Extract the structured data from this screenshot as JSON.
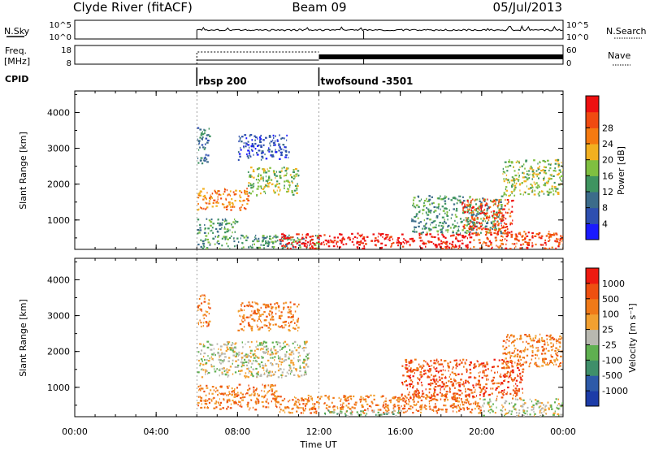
{
  "header": {
    "title_left": "Clyde River (fitACF)",
    "title_center": "Beam 09",
    "title_right": "05/Jul/2013"
  },
  "noise_panel": {
    "left_label": "N.Sky",
    "right_label": "N.Search",
    "left_ticks": [
      "10^5",
      "10^0"
    ],
    "right_ticks": [
      "10^5",
      "10^0"
    ]
  },
  "freq_panel": {
    "left_label_1": "Freq.",
    "left_label_2": "[MHz]",
    "left_ticks": [
      "18",
      "8"
    ],
    "right_label": "Nave",
    "right_ticks": [
      "60",
      "0"
    ]
  },
  "cpid": {
    "label": "CPID",
    "segments": [
      {
        "start_hour": 6,
        "name": "rbsp 200"
      },
      {
        "start_hour": 12,
        "name": "twofsound -3501"
      }
    ]
  },
  "colors": {
    "power_scale": [
      "#1a1aff",
      "#2e4fb0",
      "#3c6c8a",
      "#3f9460",
      "#7fbf40",
      "#f2b020",
      "#f57a10",
      "#f04a10",
      "#ee1010"
    ],
    "velocity_scale": [
      "#1c3ca8",
      "#2d5aa8",
      "#3f8f6a",
      "#5fb050",
      "#b8b8b0",
      "#f2a030",
      "#f07a18",
      "#ee5010",
      "#ee1a10"
    ]
  },
  "chart_data": [
    {
      "type": "heatmap",
      "title": "",
      "xlabel": "",
      "ylabel": "Slant Range [km]",
      "xlim": [
        0,
        24
      ],
      "ylim": [
        180,
        4600
      ],
      "y_ticks": [
        "1000",
        "2000",
        "3000",
        "4000"
      ],
      "colorbar": {
        "label": "Power [dB]",
        "ticks": [
          "4",
          "8",
          "12",
          "16",
          "20",
          "24",
          "28"
        ]
      },
      "regions": [
        {
          "t0": 6.0,
          "t1": 6.6,
          "r0": 2600,
          "r1": 3600,
          "level": 2
        },
        {
          "t0": 6.0,
          "t1": 8.5,
          "r0": 1300,
          "r1": 1900,
          "level": 6
        },
        {
          "t0": 6.0,
          "t1": 8.0,
          "r0": 650,
          "r1": 1050,
          "level": 3
        },
        {
          "t0": 8.5,
          "t1": 11.0,
          "r0": 1700,
          "r1": 2500,
          "level": 4
        },
        {
          "t0": 8.0,
          "t1": 10.5,
          "r0": 2700,
          "r1": 3400,
          "level": 1
        },
        {
          "t0": 6.0,
          "t1": 12.0,
          "r0": 220,
          "r1": 600,
          "level": 3
        },
        {
          "t0": 10.0,
          "t1": 19.5,
          "r0": 220,
          "r1": 650,
          "level": 8
        },
        {
          "t0": 19.5,
          "t1": 24.0,
          "r0": 220,
          "r1": 700,
          "level": 7
        },
        {
          "t0": 16.5,
          "t1": 21.0,
          "r0": 650,
          "r1": 1700,
          "level": 3
        },
        {
          "t0": 19.0,
          "t1": 21.5,
          "r0": 600,
          "r1": 1600,
          "level": 7
        },
        {
          "t0": 21.0,
          "t1": 24.0,
          "r0": 1700,
          "r1": 2700,
          "level": 4
        }
      ]
    },
    {
      "type": "heatmap",
      "title": "",
      "xlabel": "Time UT",
      "ylabel": "Slant Range [km]",
      "xlim": [
        0,
        24
      ],
      "ylim": [
        180,
        4600
      ],
      "x_ticks": [
        "00:00",
        "04:00",
        "08:00",
        "12:00",
        "16:00",
        "20:00",
        "00:00"
      ],
      "y_ticks": [
        "1000",
        "2000",
        "3000",
        "4000"
      ],
      "colorbar": {
        "label": "Velocity [m s⁻¹]",
        "ticks": [
          "1000",
          "500",
          "100",
          "25",
          "-25",
          "-100",
          "-500",
          "-1000"
        ]
      },
      "regions": [
        {
          "t0": 6.0,
          "t1": 6.6,
          "r0": 2700,
          "r1": 3600,
          "level": 6
        },
        {
          "t0": 6.0,
          "t1": 11.5,
          "r0": 1300,
          "r1": 2300,
          "level": 4
        },
        {
          "t0": 6.0,
          "t1": 10.0,
          "r0": 400,
          "r1": 1100,
          "level": 6
        },
        {
          "t0": 8.0,
          "t1": 11.0,
          "r0": 2600,
          "r1": 3400,
          "level": 6
        },
        {
          "t0": 10.0,
          "t1": 20.0,
          "r0": 300,
          "r1": 800,
          "level": 6
        },
        {
          "t0": 12.0,
          "t1": 16.0,
          "r0": 220,
          "r1": 380,
          "level": 3
        },
        {
          "t0": 16.0,
          "t1": 22.0,
          "r0": 700,
          "r1": 1800,
          "level": 7
        },
        {
          "t0": 21.0,
          "t1": 24.0,
          "r0": 1600,
          "r1": 2500,
          "level": 6
        },
        {
          "t0": 20.0,
          "t1": 24.0,
          "r0": 220,
          "r1": 700,
          "level": 4
        }
      ]
    }
  ]
}
